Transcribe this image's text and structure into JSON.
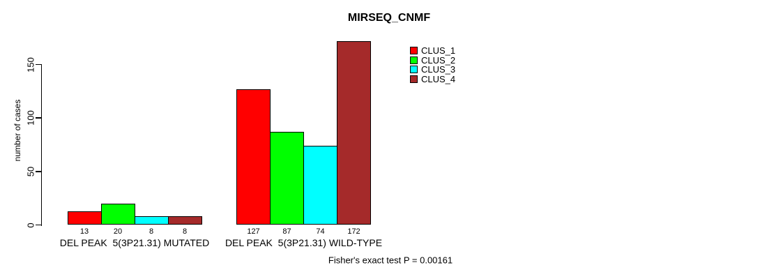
{
  "chart_data": {
    "type": "bar",
    "title": "MIRSEQ_CNMF",
    "ylabel": "number of cases",
    "xlabel": "",
    "categories": [
      "DEL PEAK  5(3P21.31) MUTATED",
      "DEL PEAK  5(3P21.31) WILD-TYPE"
    ],
    "series": [
      {
        "name": "CLUS_1",
        "color": "#ff0000",
        "values": [
          13,
          127
        ]
      },
      {
        "name": "CLUS_2",
        "color": "#00ff00",
        "values": [
          20,
          87
        ]
      },
      {
        "name": "CLUS_3",
        "color": "#00ffff",
        "values": [
          8,
          74
        ]
      },
      {
        "name": "CLUS_4",
        "color": "#a52a2a",
        "values": [
          8,
          172
        ]
      }
    ],
    "yticks": [
      0,
      50,
      100,
      150
    ],
    "ylim": [
      0,
      175
    ],
    "grid": false,
    "legend_position": "top-right",
    "bar_border_color": "#000000",
    "background": "#ffffff",
    "annotation": "Fisher's exact test P = 0.00161"
  }
}
